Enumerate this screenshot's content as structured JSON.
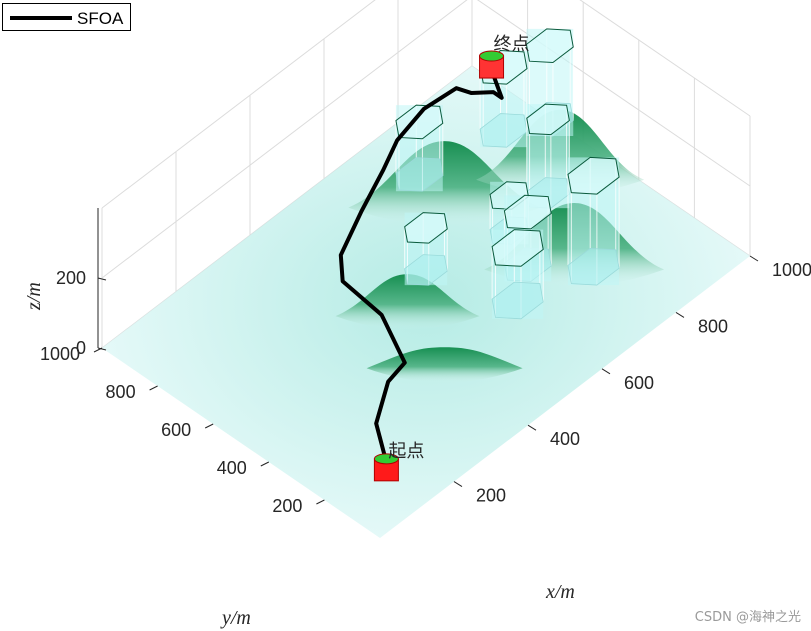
{
  "legend": {
    "label": "SFOA"
  },
  "watermark": "CSDN @海神之光",
  "chart_data": {
    "type": "3d-surface-path",
    "xlabel": "x/m",
    "ylabel": "y/m",
    "zlabel": "z/m",
    "xlim": [
      0,
      1000
    ],
    "ylim": [
      0,
      1000
    ],
    "x_ticks": [
      200,
      400,
      600,
      800,
      1000
    ],
    "y_ticks": [
      200,
      400,
      600,
      800,
      1000
    ],
    "z_ticks": [
      0,
      200
    ],
    "grid": true,
    "legend_position": "top-left",
    "series": [
      {
        "name": "SFOA",
        "color": "#000000",
        "path": [
          [
            130,
            150,
            30
          ],
          [
            170,
            240,
            60
          ],
          [
            270,
            330,
            50
          ],
          [
            330,
            350,
            45
          ],
          [
            380,
            500,
            60
          ],
          [
            380,
            640,
            80
          ],
          [
            420,
            700,
            90
          ],
          [
            520,
            760,
            100
          ],
          [
            640,
            840,
            80
          ],
          [
            700,
            870,
            100
          ],
          [
            780,
            880,
            120
          ],
          [
            860,
            870,
            120
          ],
          [
            870,
            830,
            120
          ],
          [
            900,
            790,
            120
          ],
          [
            900,
            760,
            120
          ],
          [
            880,
            770,
            210
          ]
        ]
      }
    ],
    "start": {
      "label": "起点",
      "x": 130,
      "y": 150,
      "z": 0
    },
    "goal": {
      "label": "终点",
      "x": 880,
      "y": 770,
      "z": 210
    },
    "terrain_peaks": [
      {
        "x": 700,
        "y": 700,
        "h": 190,
        "r": 160
      },
      {
        "x": 900,
        "y": 550,
        "h": 200,
        "r": 140
      },
      {
        "x": 750,
        "y": 300,
        "h": 190,
        "r": 150
      },
      {
        "x": 450,
        "y": 500,
        "h": 120,
        "r": 120
      },
      {
        "x": 400,
        "y": 300,
        "h": 60,
        "r": 130
      }
    ],
    "threat_cylinders": [
      {
        "x": 780,
        "y": 270,
        "r": 60,
        "h": 260
      },
      {
        "x": 860,
        "y": 540,
        "r": 50,
        "h": 210
      },
      {
        "x": 700,
        "y": 400,
        "r": 55,
        "h": 150
      },
      {
        "x": 740,
        "y": 520,
        "r": 45,
        "h": 100
      },
      {
        "x": 620,
        "y": 330,
        "r": 60,
        "h": 150
      },
      {
        "x": 560,
        "y": 580,
        "r": 50,
        "h": 120
      },
      {
        "x": 730,
        "y": 830,
        "r": 55,
        "h": 150
      },
      {
        "x": 920,
        "y": 780,
        "r": 55,
        "h": 180
      },
      {
        "x": 1000,
        "y": 720,
        "r": 55,
        "h": 210
      }
    ]
  }
}
